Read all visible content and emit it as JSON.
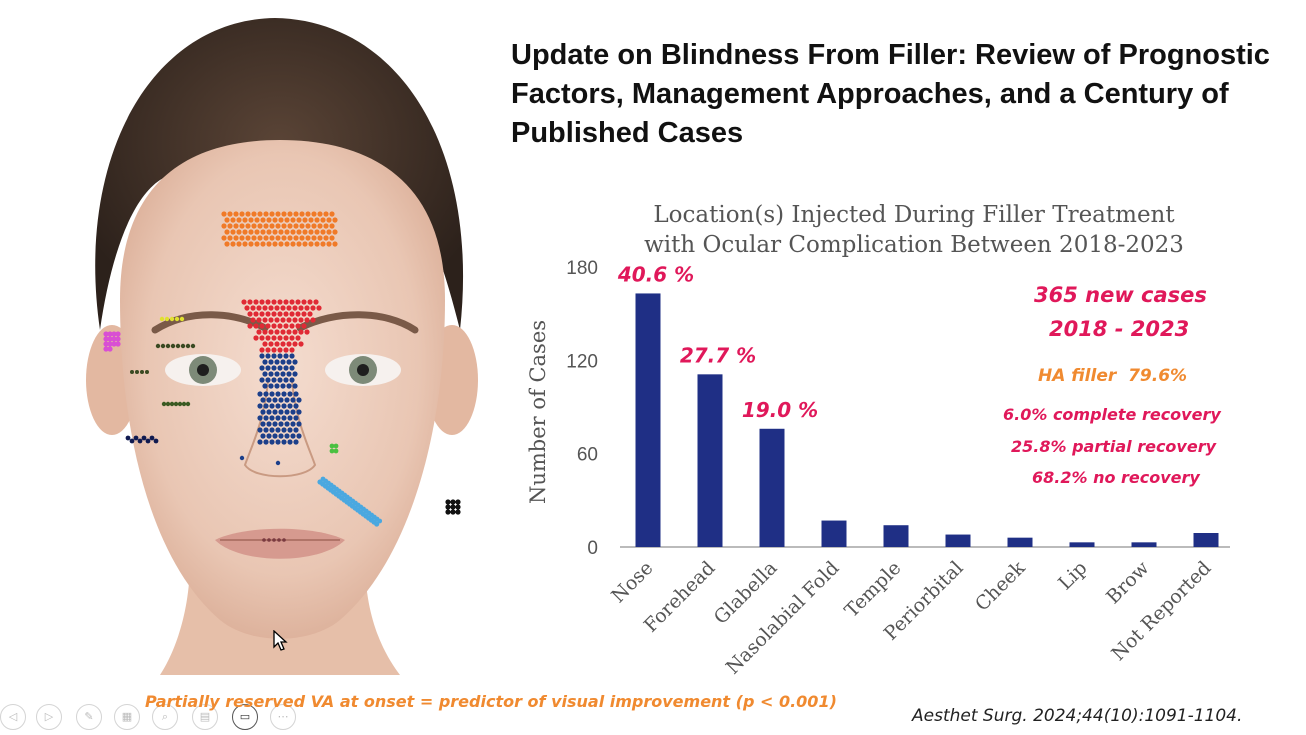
{
  "slide": {
    "title": "Update on Blindness From Filler: Review of Prognostic Factors, Management Approaches, and a Century of Published Cases",
    "footnote": "Partially reserved VA at onset = predictor of visual improvement (p < 0.001)",
    "citation": "Aesthet Surg. 2024;44(10):1091-1104."
  },
  "stats": {
    "new_cases_line1": "365 new cases",
    "new_cases_line2": "2018 - 2023",
    "ha_filler": "HA filler  79.6%",
    "complete_recovery": "6.0% complete recovery",
    "partial_recovery": "25.8% partial recovery",
    "no_recovery": "68.2% no recovery"
  },
  "colors": {
    "bar": "#1f2f85",
    "magenta_text": "#e0185a",
    "orange_text": "#f08a30",
    "forehead_dots": "#f07a28",
    "glabella_dots": "#e02a35",
    "nose_dots": "#1c3f8a",
    "nasolabial_dots": "#4aa8e0"
  },
  "chart_data": {
    "type": "bar",
    "title_line1": "Location(s) Injected During Filler Treatment",
    "title_line2": "with Ocular Complication Between 2018-2023",
    "ylabel": "Number of Cases",
    "xlabel": "",
    "ylim": [
      0,
      180
    ],
    "yticks": [
      "0",
      "60",
      "120",
      "180"
    ],
    "ytick_values": [
      0,
      60,
      120,
      180
    ],
    "categories": [
      "Nose",
      "Forehead",
      "Glabella",
      "Nasolabial Fold",
      "Temple",
      "Periorbital",
      "Cheek",
      "Lip",
      "Brow",
      "Not Reported"
    ],
    "values": [
      163,
      111,
      76,
      17,
      14,
      8,
      6,
      3,
      3,
      9
    ],
    "bar_labels": [
      "40.6 %",
      "27.7 %",
      "19.0 %",
      "",
      "",
      "",
      "",
      "",
      "",
      ""
    ],
    "grid": false
  },
  "toolbar": {
    "icons": [
      "prev-icon",
      "next-icon",
      "pen-icon",
      "slides-icon",
      "zoom-icon",
      "subtitles-icon",
      "camera-icon",
      "more-icon"
    ]
  }
}
